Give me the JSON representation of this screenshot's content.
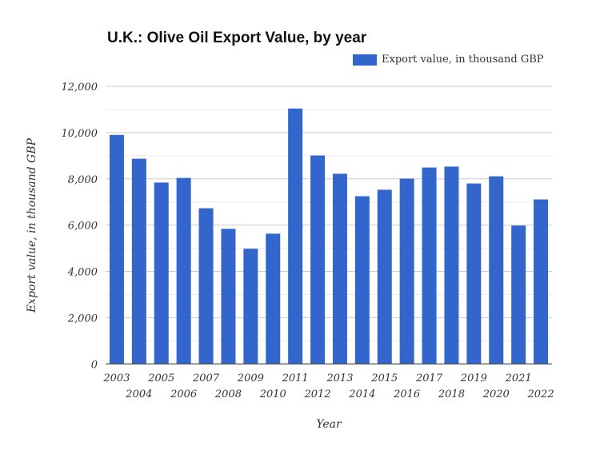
{
  "chart_data": {
    "type": "bar",
    "title": "U.K.: Olive Oil Export Value, by year",
    "xlabel": "Year",
    "ylabel": "Export value, in thousand GBP",
    "ylim": [
      0,
      12000
    ],
    "yticks": [
      0,
      2000,
      4000,
      6000,
      8000,
      10000,
      12000
    ],
    "ytick_labels": [
      "0",
      "2,000",
      "4,000",
      "6,000",
      "8,000",
      "10,000",
      "12,000"
    ],
    "grid": true,
    "legend_position": "top-right",
    "color": "#3366cc",
    "categories": [
      "2003",
      "2004",
      "2005",
      "2006",
      "2007",
      "2008",
      "2009",
      "2010",
      "2011",
      "2012",
      "2013",
      "2014",
      "2015",
      "2016",
      "2017",
      "2018",
      "2019",
      "2020",
      "2021",
      "2022"
    ],
    "series": [
      {
        "name": "Export value, in thousand GBP",
        "values": [
          9900,
          8870,
          7840,
          8040,
          6730,
          5840,
          4980,
          5630,
          11040,
          9010,
          8220,
          7250,
          7530,
          8010,
          8490,
          8530,
          7800,
          8110,
          5980,
          7110
        ]
      }
    ]
  }
}
